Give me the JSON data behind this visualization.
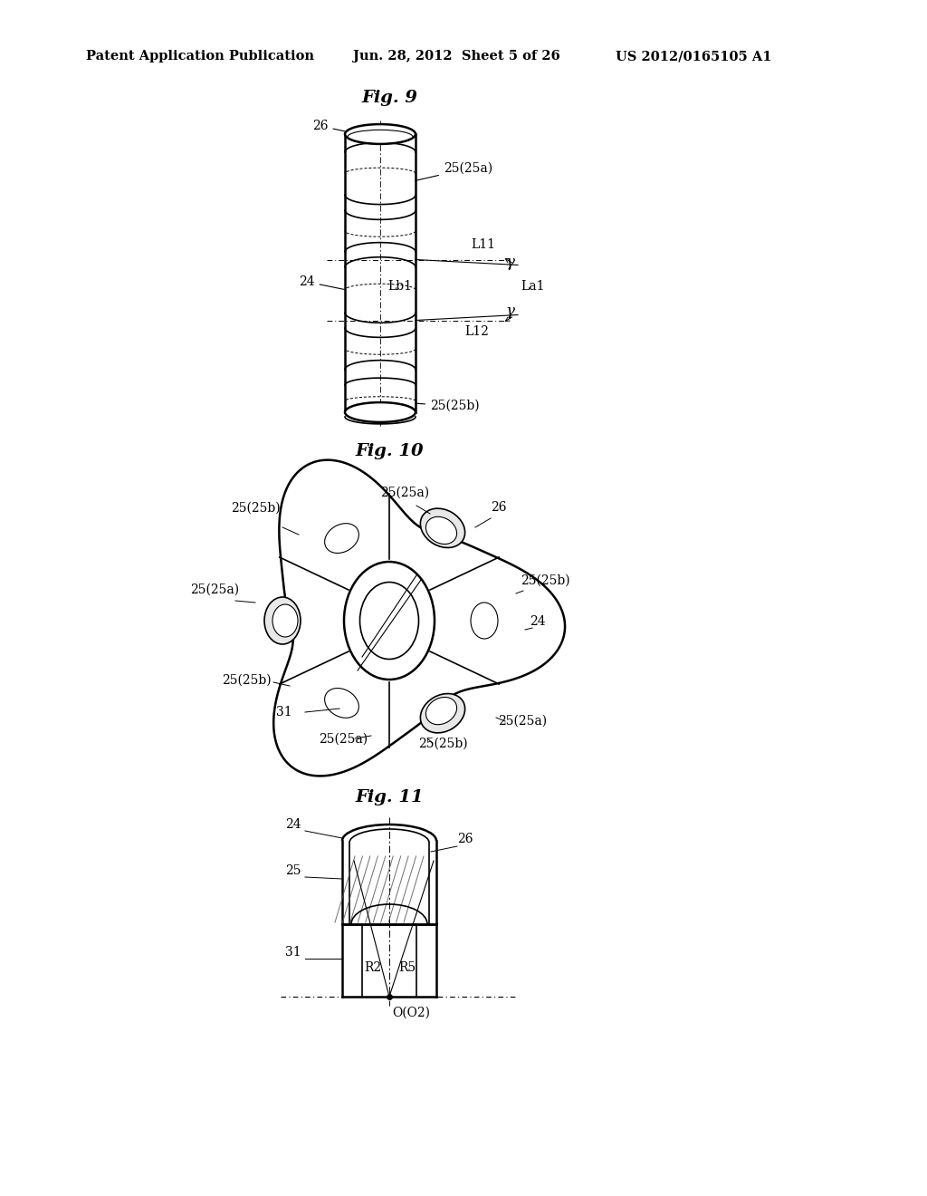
{
  "title_line1": "Patent Application Publication",
  "title_line2": "Jun. 28, 2012  Sheet 5 of 26",
  "title_line3": "US 2012/0165105 A1",
  "fig9_label": "Fig. 9",
  "fig10_label": "Fig. 10",
  "fig11_label": "Fig. 11",
  "background_color": "#ffffff",
  "line_color": "#000000",
  "text_color": "#000000",
  "header_fontsize": 10.5,
  "fig_label_fontsize": 14,
  "annot_fontsize": 10
}
